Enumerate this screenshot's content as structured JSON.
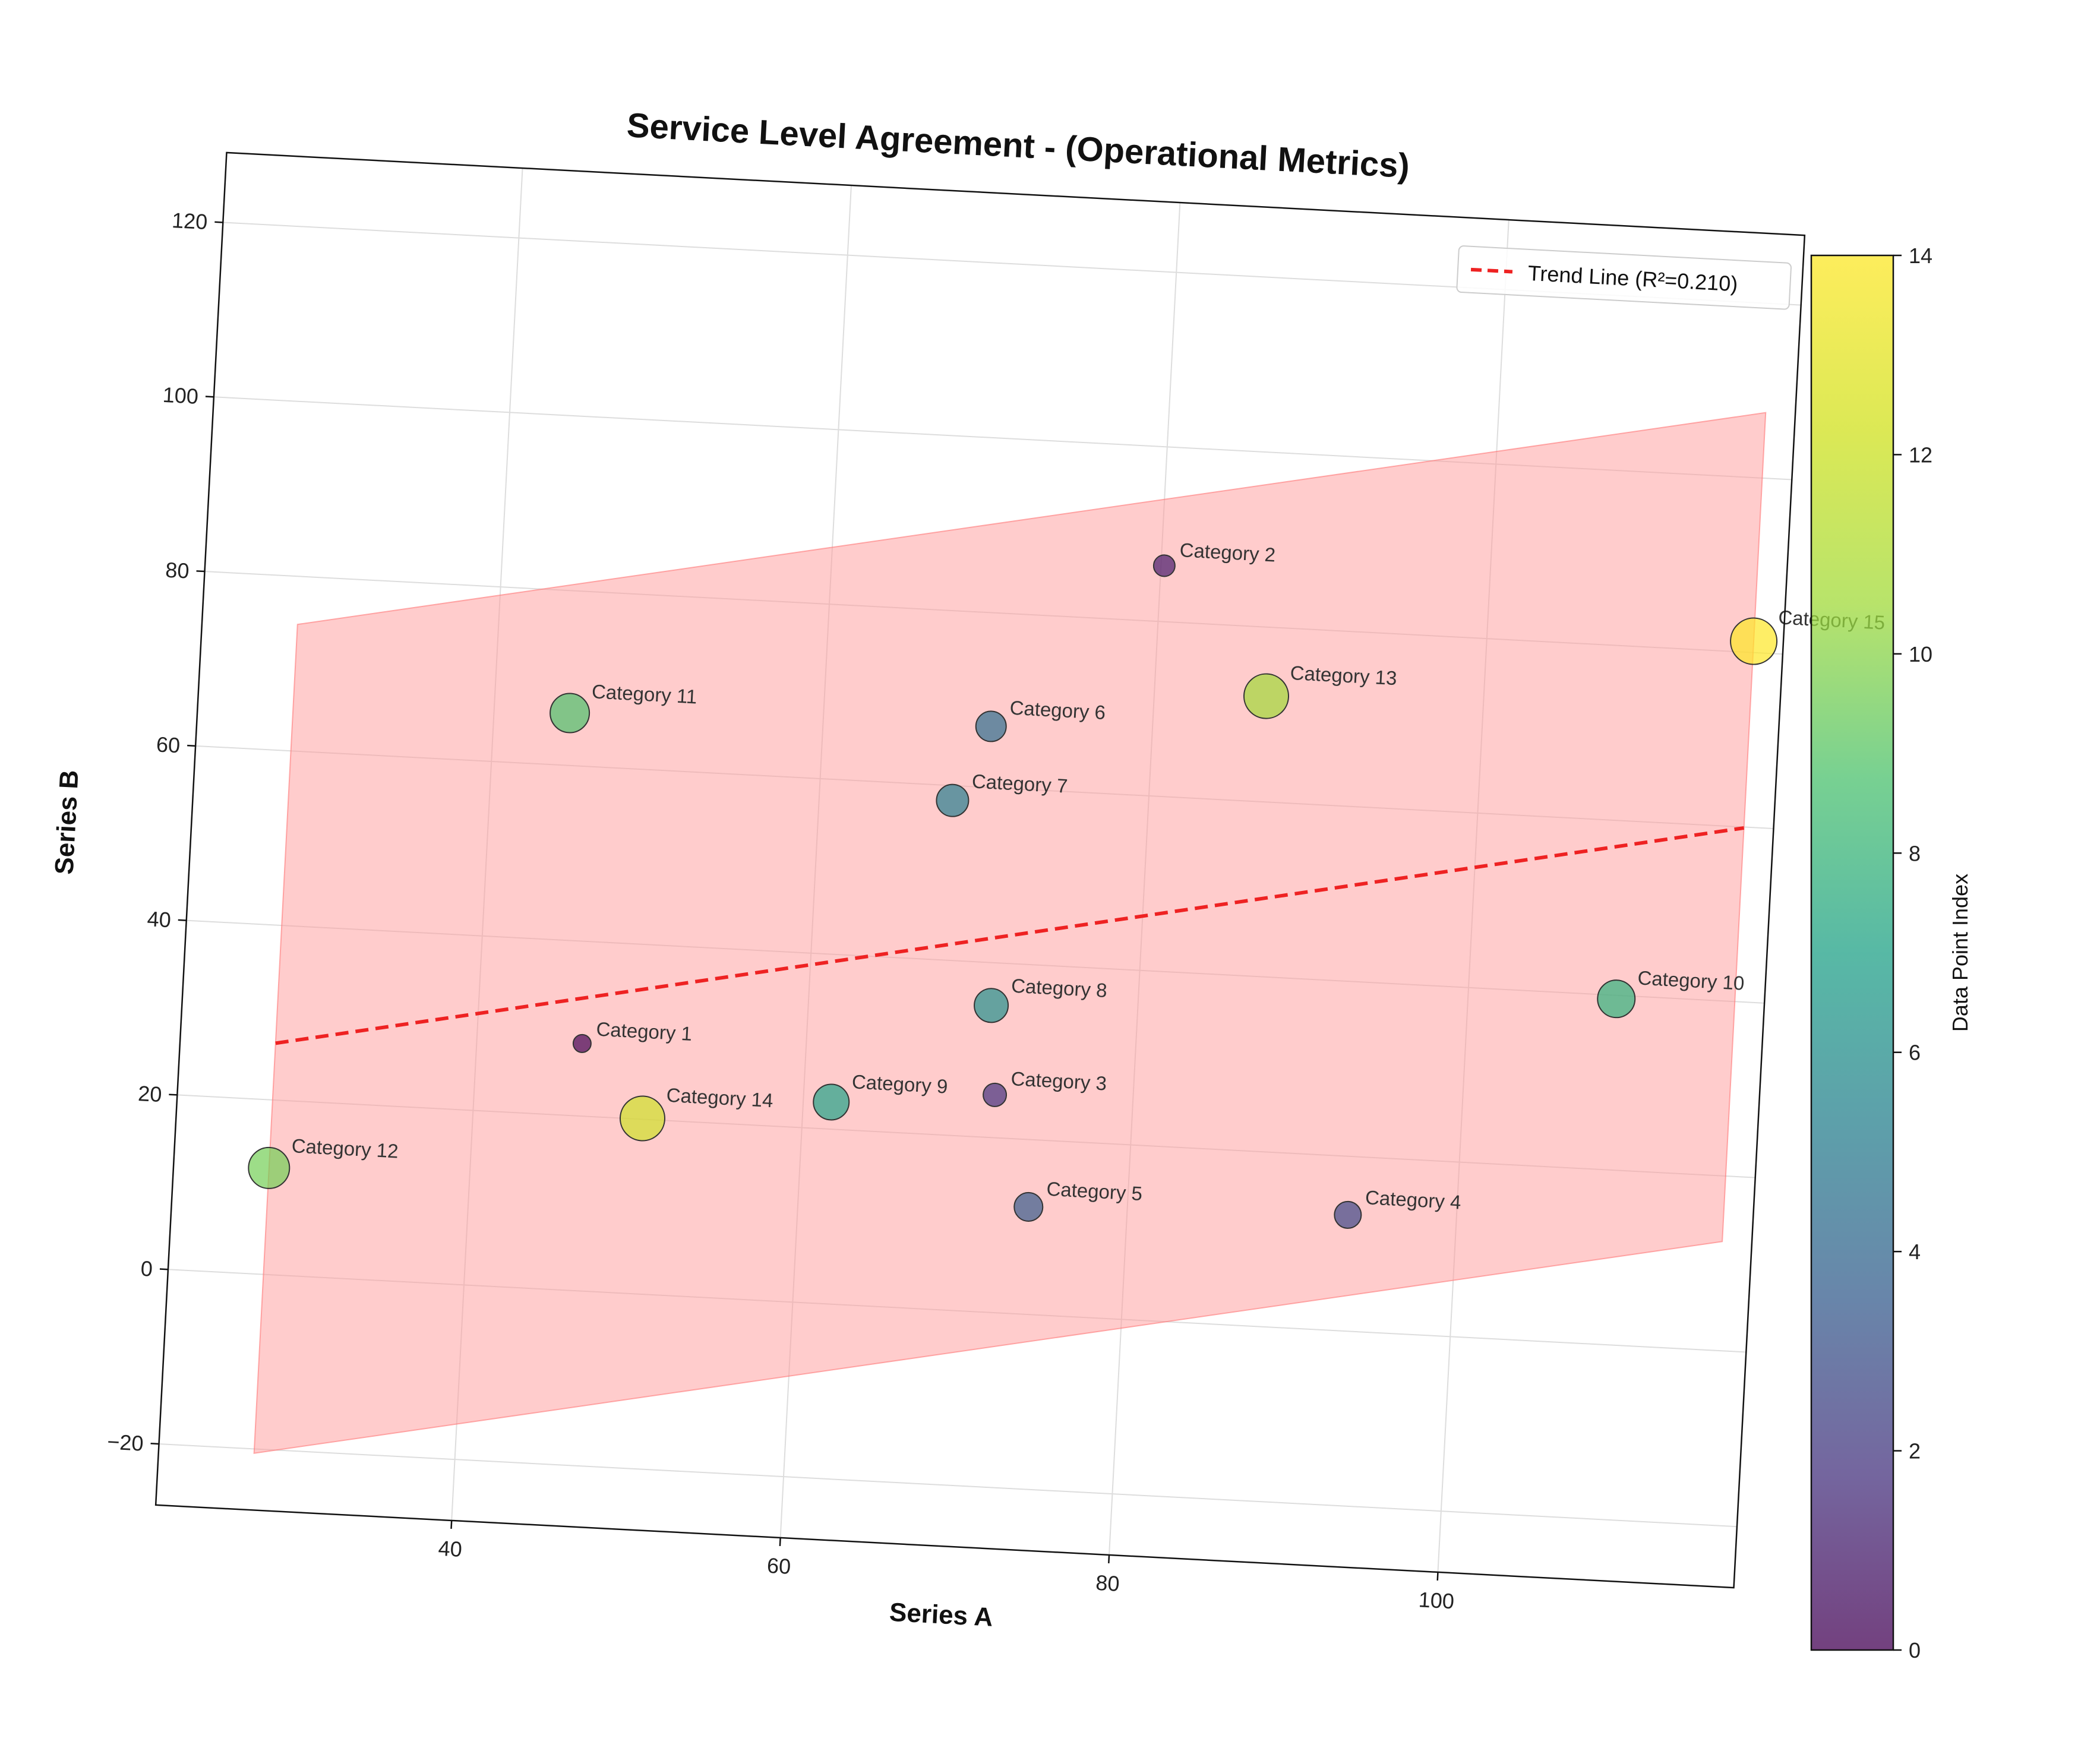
{
  "chart_data": {
    "type": "scatter",
    "title": "Service Level Agreement - (Operational Metrics)",
    "xlabel": "Series A",
    "ylabel": "Series B",
    "xlim": [
      22,
      118
    ],
    "ylim": [
      -27,
      128
    ],
    "x_ticks": [
      40,
      60,
      80,
      100
    ],
    "y_ticks": [
      -20,
      0,
      20,
      40,
      60,
      80,
      100,
      120
    ],
    "grid": true,
    "rotation_deg": 3,
    "points": [
      {
        "label": "Category 1",
        "x": 46.4,
        "y": 28.3,
        "size": 1.0,
        "color_value": 0
      },
      {
        "label": "Category 2",
        "x": 80.2,
        "y": 86.4,
        "size": 1.2,
        "color_value": 1
      },
      {
        "label": "Category 3",
        "x": 71.6,
        "y": 24.9,
        "size": 1.3,
        "color_value": 2
      },
      {
        "label": "Category 4",
        "x": 93.4,
        "y": 13.3,
        "size": 1.5,
        "color_value": 3
      },
      {
        "label": "Category 5",
        "x": 74.0,
        "y": 12.3,
        "size": 1.6,
        "color_value": 4
      },
      {
        "label": "Category 6",
        "x": 70.2,
        "y": 67.0,
        "size": 1.7,
        "color_value": 5
      },
      {
        "label": "Category 7",
        "x": 68.1,
        "y": 58.3,
        "size": 1.8,
        "color_value": 6
      },
      {
        "label": "Category 8",
        "x": 71.1,
        "y": 35.1,
        "size": 1.9,
        "color_value": 7
      },
      {
        "label": "Category 9",
        "x": 61.7,
        "y": 23.1,
        "size": 2.0,
        "color_value": 8
      },
      {
        "label": "Category 10",
        "x": 109.0,
        "y": 39.6,
        "size": 2.1,
        "color_value": 9
      },
      {
        "label": "Category 11",
        "x": 44.6,
        "y": 66.0,
        "size": 2.2,
        "color_value": 10
      },
      {
        "label": "Category 12",
        "x": 27.8,
        "y": 12.2,
        "size": 2.3,
        "color_value": 11
      },
      {
        "label": "Category 13",
        "x": 86.8,
        "y": 72.1,
        "size": 2.5,
        "color_value": 12
      },
      {
        "label": "Category 14",
        "x": 50.3,
        "y": 20.1,
        "size": 2.5,
        "color_value": 13
      },
      {
        "label": "Category 15",
        "x": 116.2,
        "y": 81.3,
        "size": 2.6,
        "color_value": 14
      }
    ],
    "trend_line": {
      "label": "Trend Line (R²=0.210)",
      "x": [
        27.8,
        116.2
      ],
      "y": [
        26.5,
        59.9
      ],
      "color": "#ee2222",
      "style": "dashed"
    },
    "confidence_band": {
      "color": "#ff9999",
      "opacity": 0.5,
      "upper": [
        [
          27.8,
          74.5
        ],
        [
          116.2,
          107.5
        ]
      ],
      "lower": [
        [
          27.8,
          -20.5
        ],
        [
          116.2,
          12.5
        ]
      ]
    },
    "legend": {
      "placement": "top-right",
      "entries": [
        "Trend Line (R²=0.210)"
      ]
    },
    "colorbar": {
      "label": "Data Point Index",
      "min": 0,
      "max": 14,
      "ticks": [
        0,
        2,
        4,
        6,
        8,
        10,
        12,
        14
      ],
      "colormap": "viridis"
    },
    "point_alpha": 0.7,
    "marker_edge_color": "#333333"
  }
}
